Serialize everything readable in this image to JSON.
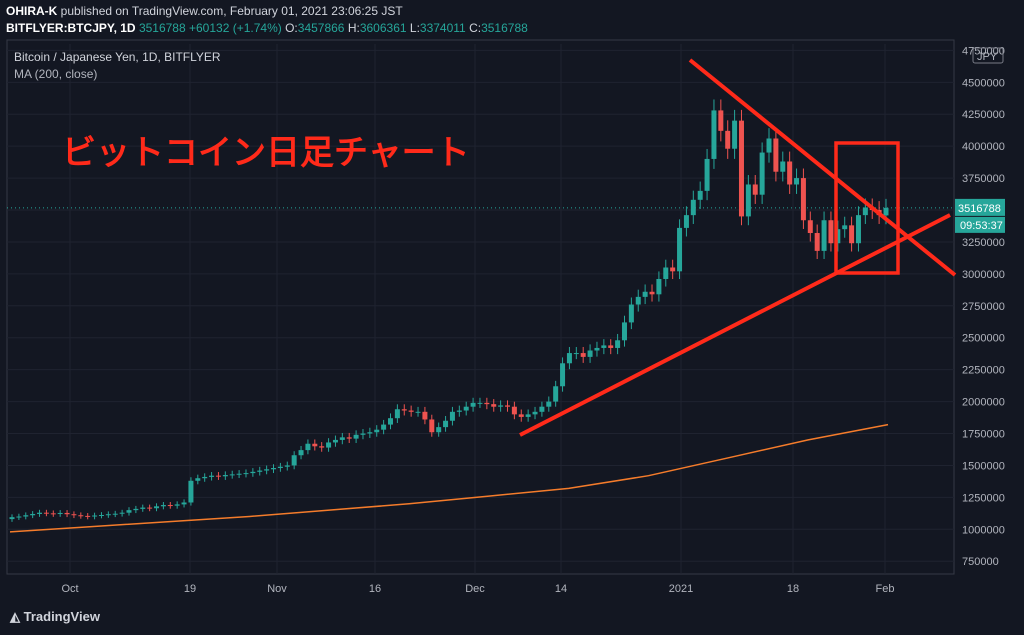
{
  "header": {
    "author": "OHIRA-K",
    "published_text": "published on TradingView.com, February 01, 2021 23:06:25 JST",
    "symbol": "BITFLYER:BTCJPY, 1D",
    "close_value": "3516788",
    "change_text": "+60132 (+1.74%)",
    "ohlc": {
      "o_label": "O:",
      "o": "3457866",
      "h_label": "H:",
      "h": "3606361",
      "l_label": "L:",
      "l": "3374011",
      "c_label": "C:",
      "c": "3516788"
    }
  },
  "chart_info": {
    "title": "Bitcoin / Japanese Yen, 1D, BITFLYER",
    "indicator": "MA (200, close)"
  },
  "annotation": {
    "text": "ビットコイン日足チャート"
  },
  "price_axis": {
    "currency": "JPY",
    "ticks": [
      "4750000",
      "4500000",
      "4250000",
      "4000000",
      "3750000",
      "3500000",
      "3250000",
      "3000000",
      "2750000",
      "2500000",
      "2250000",
      "2000000",
      "1750000",
      "1500000",
      "1250000",
      "1000000",
      "750000"
    ],
    "current_price": "3516788",
    "countdown": "09:53:37"
  },
  "time_axis": {
    "labels": [
      "Oct",
      "19",
      "Nov",
      "16",
      "Dec",
      "14",
      "2021",
      "18",
      "Feb"
    ]
  },
  "footer": {
    "brand": "TradingView"
  },
  "colors": {
    "background": "#131722",
    "up": "#26a69a",
    "down": "#ef5350",
    "ma": "#f57c2b",
    "annotation": "#ff2a1a"
  },
  "chart_data": {
    "type": "candlestick",
    "title": "Bitcoin / Japanese Yen, 1D, BITFLYER",
    "ylabel": "JPY",
    "ylim": [
      650000,
      4800000
    ],
    "x_labels": [
      "Oct",
      "19",
      "Nov",
      "16",
      "Dec",
      "14",
      "2021",
      "18",
      "Feb"
    ],
    "ma200": [
      980000,
      1020000,
      1060000,
      1100000,
      1150000,
      1200000,
      1260000,
      1320000,
      1420000,
      1560000,
      1700000,
      1820000
    ],
    "series_close": [
      1095000,
      1100000,
      1110000,
      1120000,
      1130000,
      1125000,
      1120000,
      1128000,
      1118000,
      1110000,
      1105000,
      1100000,
      1108000,
      1112000,
      1118000,
      1122000,
      1130000,
      1150000,
      1160000,
      1170000,
      1165000,
      1180000,
      1190000,
      1185000,
      1195000,
      1210000,
      1380000,
      1400000,
      1410000,
      1420000,
      1415000,
      1425000,
      1430000,
      1435000,
      1440000,
      1450000,
      1460000,
      1470000,
      1480000,
      1490000,
      1500000,
      1580000,
      1620000,
      1670000,
      1650000,
      1640000,
      1680000,
      1700000,
      1720000,
      1710000,
      1740000,
      1750000,
      1760000,
      1780000,
      1820000,
      1870000,
      1940000,
      1930000,
      1920000,
      1920000,
      1860000,
      1760000,
      1800000,
      1850000,
      1920000,
      1930000,
      1960000,
      1990000,
      1990000,
      1980000,
      1960000,
      1970000,
      1960000,
      1900000,
      1880000,
      1900000,
      1920000,
      1960000,
      2000000,
      2120000,
      2300000,
      2380000,
      2380000,
      2350000,
      2400000,
      2420000,
      2440000,
      2420000,
      2480000,
      2620000,
      2760000,
      2820000,
      2860000,
      2840000,
      2960000,
      3050000,
      3020000,
      3360000,
      3460000,
      3580000,
      3650000,
      3900000,
      4280000,
      4120000,
      3980000,
      4200000,
      3450000,
      3700000,
      3620000,
      3950000,
      4060000,
      3800000,
      3880000,
      3700000,
      3750000,
      3420000,
      3320000,
      3180000,
      3420000,
      3240000,
      3350000,
      3380000,
      3240000,
      3460000,
      3520000,
      3500000,
      3460000,
      3517000
    ],
    "series_open": [
      1080000,
      1095000,
      1100000,
      1110000,
      1120000,
      1130000,
      1125000,
      1120000,
      1128000,
      1118000,
      1110000,
      1105000,
      1100000,
      1108000,
      1112000,
      1118000,
      1122000,
      1130000,
      1150000,
      1160000,
      1170000,
      1165000,
      1180000,
      1190000,
      1185000,
      1195000,
      1210000,
      1380000,
      1400000,
      1410000,
      1420000,
      1415000,
      1425000,
      1430000,
      1435000,
      1440000,
      1450000,
      1460000,
      1470000,
      1480000,
      1490000,
      1500000,
      1580000,
      1620000,
      1670000,
      1650000,
      1640000,
      1680000,
      1700000,
      1720000,
      1710000,
      1740000,
      1750000,
      1760000,
      1780000,
      1820000,
      1870000,
      1940000,
      1930000,
      1920000,
      1920000,
      1860000,
      1760000,
      1800000,
      1850000,
      1920000,
      1930000,
      1960000,
      1990000,
      1990000,
      1980000,
      1960000,
      1970000,
      1960000,
      1900000,
      1880000,
      1900000,
      1920000,
      1960000,
      2000000,
      2120000,
      2300000,
      2380000,
      2380000,
      2350000,
      2400000,
      2420000,
      2440000,
      2420000,
      2480000,
      2620000,
      2760000,
      2820000,
      2860000,
      2840000,
      2960000,
      3050000,
      3020000,
      3360000,
      3460000,
      3580000,
      3650000,
      3900000,
      4280000,
      4120000,
      3980000,
      4200000,
      3450000,
      3700000,
      3620000,
      3950000,
      4060000,
      3800000,
      3880000,
      3700000,
      3750000,
      3420000,
      3320000,
      3180000,
      3420000,
      3240000,
      3350000,
      3380000,
      3240000,
      3460000,
      3520000,
      3500000,
      3457866
    ]
  }
}
